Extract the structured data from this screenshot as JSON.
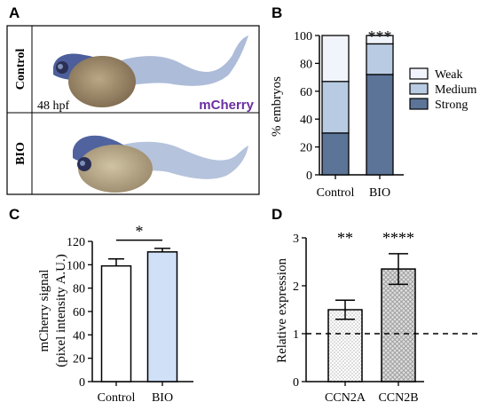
{
  "panels": {
    "a": {
      "label": "A",
      "rows": [
        "Control",
        "BIO"
      ],
      "timepoint": "48 hpf",
      "channel": "mCherry",
      "channel_color": "#6a2fa0"
    },
    "b": {
      "label": "B"
    },
    "c": {
      "label": "C"
    },
    "d": {
      "label": "D"
    }
  },
  "chart_data": [
    {
      "id": "b",
      "type": "bar",
      "stacked": true,
      "categories": [
        "Control",
        "BIO"
      ],
      "series": [
        {
          "name": "Strong",
          "values": [
            30,
            72
          ],
          "color": "#5b7497"
        },
        {
          "name": "Medium",
          "values": [
            37,
            22
          ],
          "color": "#b8cbe2"
        },
        {
          "name": "Weak",
          "values": [
            33,
            6
          ],
          "color": "#f1f4fa"
        }
      ],
      "ylabel": "% embryos",
      "ylim": [
        0,
        100
      ],
      "yticks": [
        0,
        20,
        40,
        60,
        80,
        100
      ],
      "legend_position": "right",
      "annotations": [
        {
          "category": "BIO",
          "text": "***"
        }
      ]
    },
    {
      "id": "c",
      "type": "bar",
      "categories": [
        "Control",
        "BIO"
      ],
      "values": [
        99,
        111
      ],
      "errors": [
        6,
        3
      ],
      "colors": [
        "#ffffff",
        "#cfe0f7"
      ],
      "ylabel_lines": [
        "mCherry signal",
        "(pixel intensity A.U.)"
      ],
      "ylim": [
        0,
        120
      ],
      "yticks": [
        0,
        20,
        40,
        60,
        80,
        100,
        120
      ],
      "significance": {
        "text": "*",
        "between": [
          "Control",
          "BIO"
        ]
      }
    },
    {
      "id": "d",
      "type": "bar",
      "categories": [
        "CCN2A",
        "CCN2B"
      ],
      "values": [
        1.5,
        2.35
      ],
      "errors": [
        0.2,
        0.32
      ],
      "ylabel": "Relative expression",
      "ylim": [
        0,
        3
      ],
      "yticks": [
        0,
        1,
        2,
        3
      ],
      "reference_line": 1,
      "annotations": [
        "**",
        "****"
      ]
    }
  ]
}
